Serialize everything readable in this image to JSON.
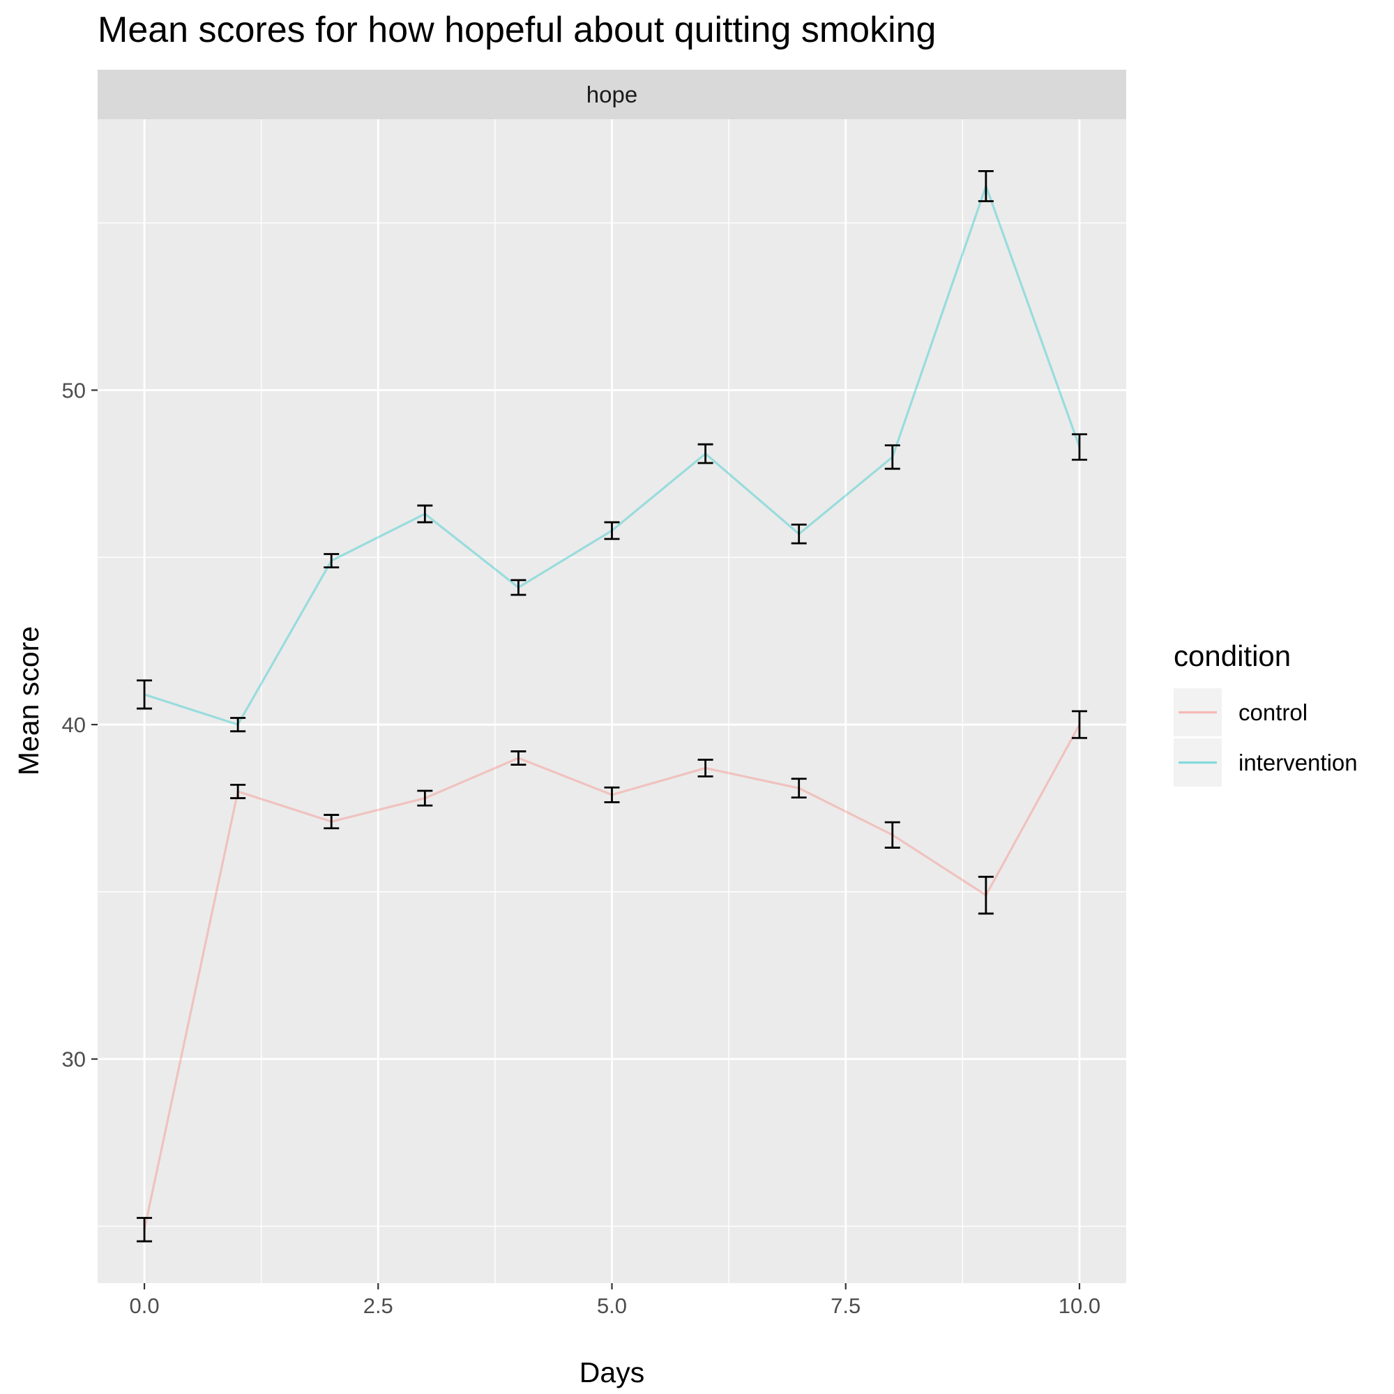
{
  "chart_data": {
    "type": "line",
    "title": "Mean scores for how hopeful about quitting smoking",
    "facet_label": "hope",
    "xlabel": "Days",
    "ylabel": "Mean score",
    "xlim": [
      -0.5,
      10.5
    ],
    "ylim": [
      23.3,
      58.1
    ],
    "x_ticks": [
      0,
      2.5,
      5,
      7.5,
      10
    ],
    "x_tick_labels": [
      "0.0",
      "2.5",
      "5.0",
      "7.5",
      "10.0"
    ],
    "y_ticks": [
      30,
      40,
      50
    ],
    "y_tick_labels": [
      "30",
      "40",
      "50"
    ],
    "x_minor": [
      1.25,
      3.75,
      6.25,
      8.75
    ],
    "y_minor": [
      25,
      35,
      45,
      55
    ],
    "grid": true,
    "background": "#ebebeb",
    "strip_background": "#d9d9d9",
    "legend": {
      "title": "condition",
      "position": "right"
    },
    "series": [
      {
        "name": "control",
        "color": "#f8766d",
        "x": [
          0,
          1,
          2,
          3,
          4,
          5,
          6,
          7,
          8,
          9,
          10
        ],
        "y": [
          24.9,
          38.0,
          37.1,
          37.8,
          39.0,
          37.9,
          38.7,
          38.1,
          36.7,
          34.9,
          40.0
        ],
        "err": [
          0.35,
          0.2,
          0.2,
          0.22,
          0.2,
          0.22,
          0.25,
          0.28,
          0.38,
          0.55,
          0.4
        ]
      },
      {
        "name": "intervention",
        "color": "#00bfc4",
        "x": [
          0,
          1,
          2,
          3,
          4,
          5,
          6,
          7,
          8,
          9,
          10
        ],
        "y": [
          40.9,
          40.0,
          44.9,
          46.3,
          44.1,
          45.8,
          48.1,
          45.7,
          48.0,
          56.1,
          48.3
        ],
        "err": [
          0.42,
          0.2,
          0.2,
          0.25,
          0.22,
          0.25,
          0.28,
          0.28,
          0.35,
          0.45,
          0.38
        ]
      }
    ]
  }
}
